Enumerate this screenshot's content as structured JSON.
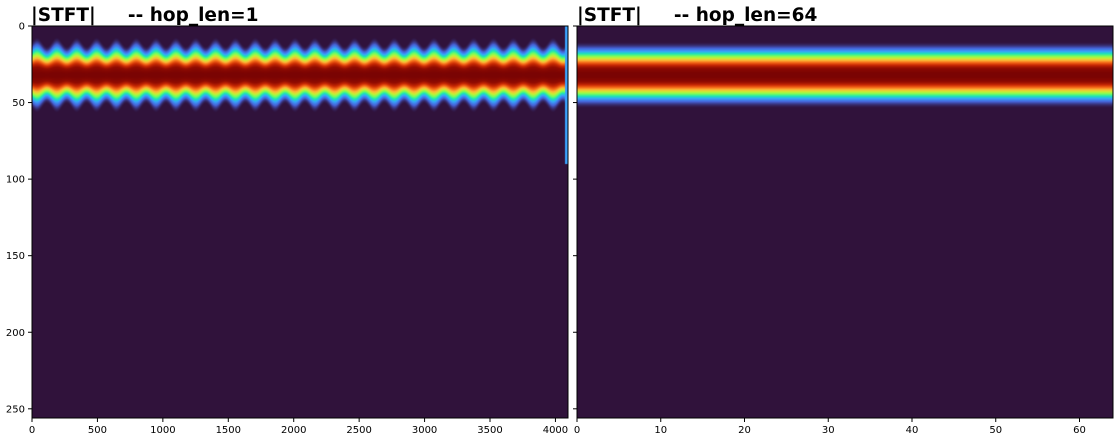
{
  "chart_data": [
    {
      "type": "heatmap",
      "title": "|STFT|     -- hop_len=1",
      "xlabel": "",
      "ylabel": "",
      "xlim": [
        0,
        4096
      ],
      "ylim": [
        256,
        0
      ],
      "x_ticks": [
        0,
        500,
        1000,
        1500,
        2000,
        2500,
        3000,
        3500,
        4000
      ],
      "y_ticks": [
        0,
        50,
        100,
        150,
        200,
        250
      ],
      "y_tick_labels_visible": true,
      "colormap": "turbo",
      "background_color": "#30123b",
      "band": {
        "center_bin": 32,
        "halfwidth_bins": 22,
        "ripple_amplitude_bins": 3,
        "ripple_cycles": 27
      }
    },
    {
      "type": "heatmap",
      "title": "|STFT|     -- hop_len=64",
      "xlabel": "",
      "ylabel": "",
      "xlim": [
        0,
        64
      ],
      "ylim": [
        256,
        0
      ],
      "x_ticks": [
        0,
        10,
        20,
        30,
        40,
        50,
        60
      ],
      "y_ticks": [
        0,
        50,
        100,
        150,
        200,
        250
      ],
      "y_tick_labels_visible": false,
      "colormap": "turbo",
      "background_color": "#30123b",
      "band": {
        "center_bin": 32,
        "halfwidth_bins": 22,
        "ripple_amplitude_bins": 0,
        "ripple_cycles": 0
      }
    }
  ]
}
